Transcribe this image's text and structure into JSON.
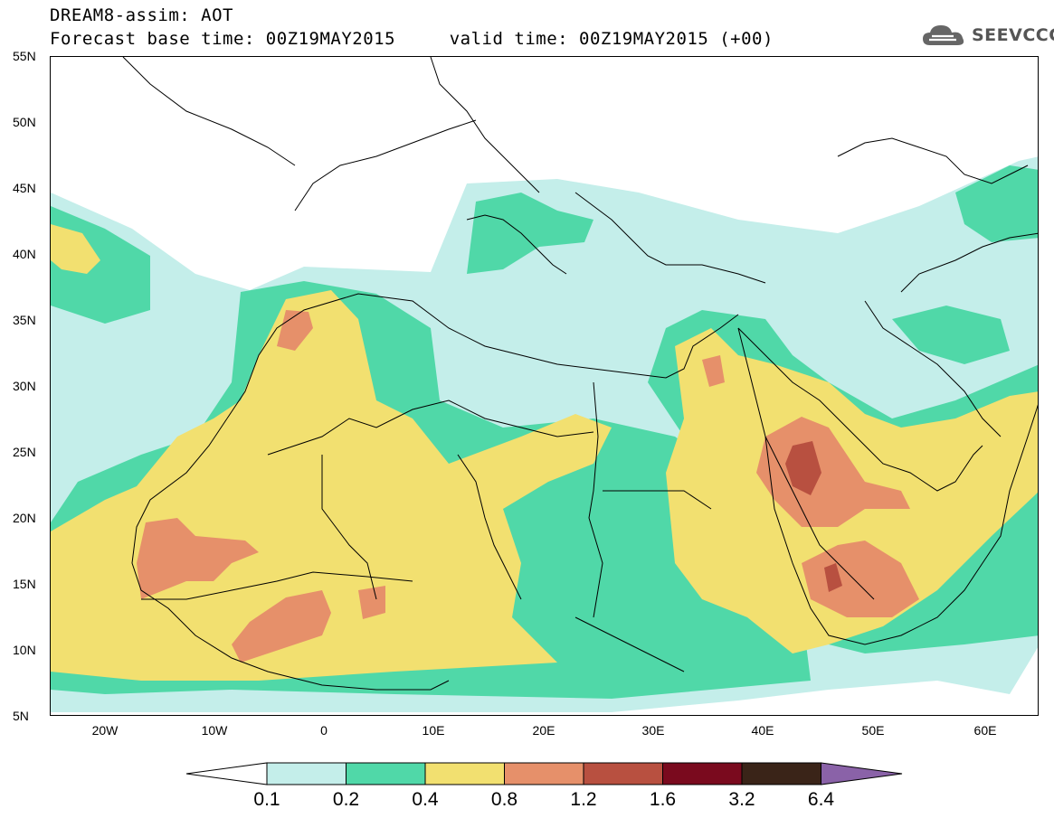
{
  "title": {
    "line1": "DREAM8-assim: AOT",
    "line2": "Forecast base time: 00Z19MAY2015     valid time: 00Z19MAY2015 (+00)"
  },
  "logo": {
    "text": "SEEVCCC",
    "icon": "cloud-icon"
  },
  "map": {
    "region": "North Africa, Europe and Middle East",
    "lon_range": [
      -25,
      65
    ],
    "lat_range": [
      5,
      55
    ],
    "lat_ticks": [
      "55N",
      "50N",
      "45N",
      "40N",
      "35N",
      "30N",
      "25N",
      "20N",
      "15N",
      "10N",
      "5N"
    ],
    "lon_ticks": [
      "20W",
      "10W",
      "0",
      "10E",
      "20E",
      "30E",
      "40E",
      "50E",
      "60E"
    ]
  },
  "colorbar": {
    "levels": [
      "0.1",
      "0.2",
      "0.4",
      "0.8",
      "1.2",
      "1.6",
      "3.2",
      "6.4"
    ],
    "colors": [
      "#c4eeea",
      "#50d8a8",
      "#f2e070",
      "#e6906a",
      "#b85040",
      "#7a0a1e",
      "#3a2418",
      "#8a62a8"
    ]
  }
}
